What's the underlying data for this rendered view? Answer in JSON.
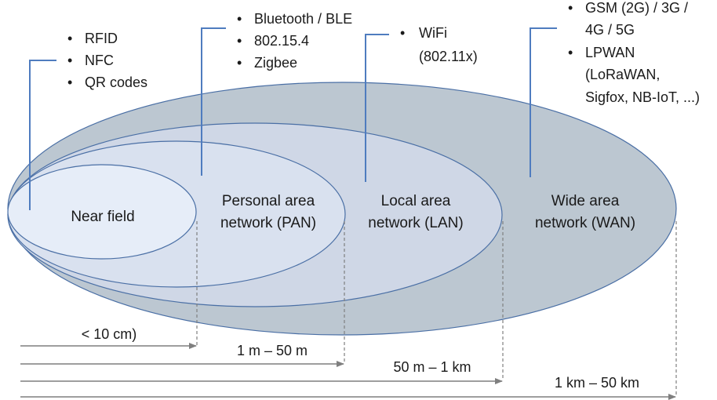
{
  "zones": [
    {
      "id": "near",
      "lines": [
        "Near field"
      ],
      "bullets": [
        "RFID",
        "NFC",
        "QR codes"
      ],
      "range": "< 10 cm)"
    },
    {
      "id": "pan",
      "lines": [
        "Personal area",
        "network (PAN)"
      ],
      "bullets": [
        "Bluetooth / BLE",
        "802.15.4",
        "Zigbee"
      ],
      "range": "1 m – 50 m"
    },
    {
      "id": "lan",
      "lines": [
        "Local area",
        "network (LAN)"
      ],
      "bullets": [
        "WiFi",
        "(802.11x)"
      ],
      "range": "50 m – 1 km"
    },
    {
      "id": "wan",
      "lines": [
        "Wide area",
        "network (WAN)"
      ],
      "bullets": [
        "GSM (2G) / 3G /",
        "4G / 5G",
        "LPWAN",
        "(LoRaWAN,",
        "Sigfox, NB-IoT, ...)"
      ],
      "range": "1 km – 50 km"
    }
  ],
  "colors": {
    "wan_fill": "#bcc7d1",
    "lan_fill": "#cfd7e6",
    "pan_fill": "#d9e1ef",
    "near_fill": "#e6edf8",
    "outline": "#4a6fa5",
    "leader": "#4f7cbf",
    "arrow": "#7f7f7f"
  }
}
